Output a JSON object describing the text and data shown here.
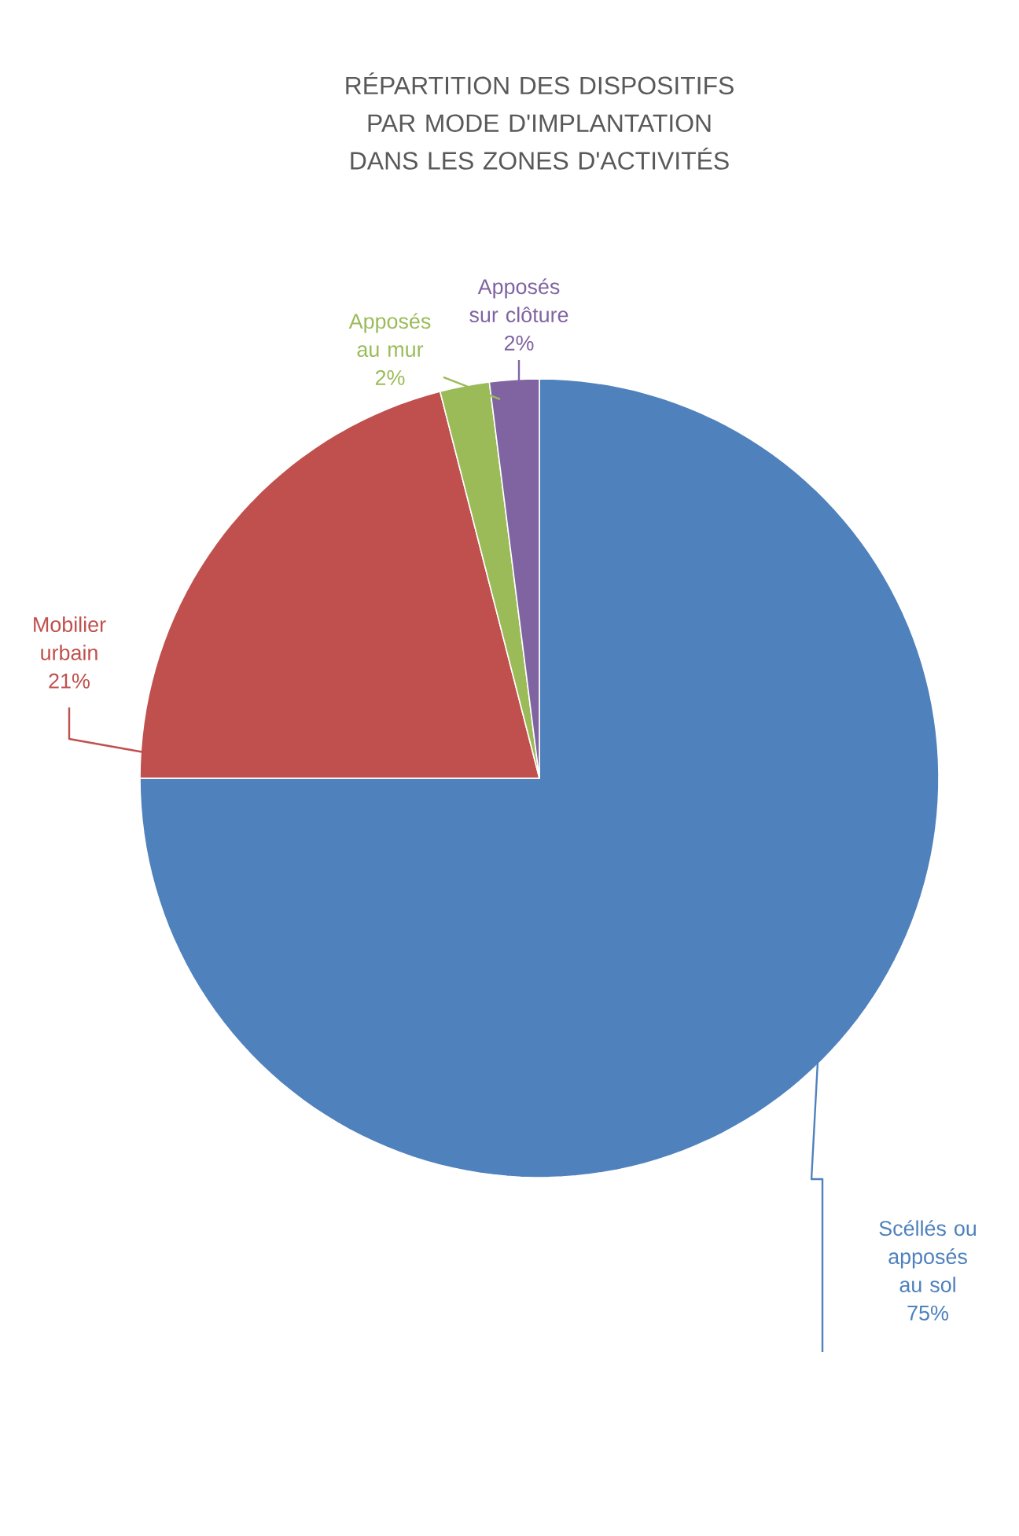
{
  "chart_data": {
    "type": "pie",
    "title": "RÉPARTITION DES DISPOSITIFS PAR MODE D'IMPLANTATION DANS LES ZONES D'ACTIVITÉS",
    "categories": [
      "Scéllés ou apposés au sol",
      "Mobilier urbain",
      "Apposés au mur",
      "Apposés sur clôture"
    ],
    "values": [
      75,
      21,
      2,
      2
    ],
    "value_labels": [
      "75%",
      "21%",
      "2%",
      "2%"
    ],
    "colors": [
      "#4f81bd",
      "#c0504d",
      "#9bbb59",
      "#8064a2"
    ]
  }
}
